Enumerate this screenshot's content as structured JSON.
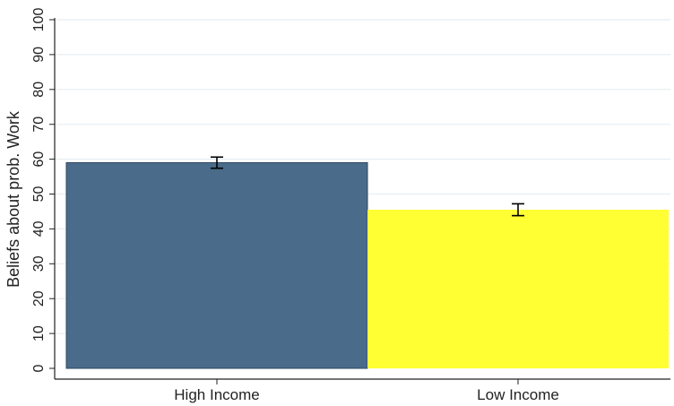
{
  "chart_data": {
    "type": "bar",
    "categories": [
      "High Income",
      "Low Income"
    ],
    "values": [
      59,
      45.5
    ],
    "error_bars": [
      {
        "low": 57.4,
        "high": 60.6
      },
      {
        "low": 43.8,
        "high": 47.2
      }
    ],
    "title": "",
    "xlabel": "",
    "ylabel": "Beliefs about prob. Work",
    "ylim": [
      0,
      100
    ],
    "yticks": [
      "0",
      "10",
      "20",
      "30",
      "40",
      "50",
      "60",
      "70",
      "80",
      "90",
      "100"
    ],
    "grid": true,
    "legend": "none",
    "colors": {
      "High Income": "#4a6b8a",
      "Low Income": "#ffff33",
      "grid": "#e6eef2",
      "axis": "#222222"
    }
  }
}
